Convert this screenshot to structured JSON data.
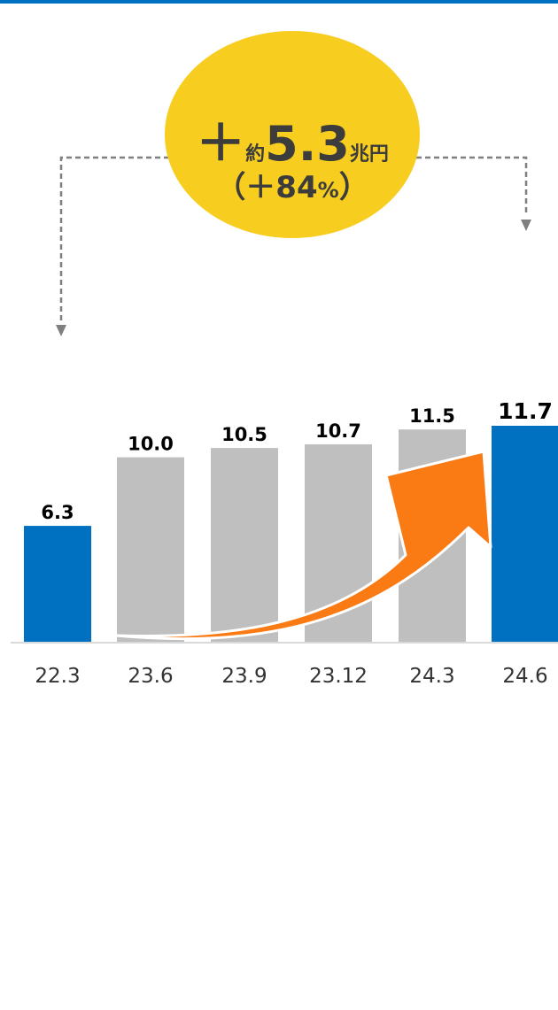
{
  "chart_data": {
    "type": "bar",
    "categories": [
      "22.3",
      "23.6",
      "23.9",
      "23.12",
      "24.3",
      "24.6"
    ],
    "values": [
      6.3,
      10.0,
      10.5,
      10.7,
      11.5,
      11.7
    ],
    "value_labels": [
      "6.3",
      "10.0",
      "10.5",
      "10.7",
      "11.5",
      "11.7"
    ],
    "highlighted": [
      true,
      false,
      false,
      false,
      false,
      true
    ],
    "ylim": [
      0,
      11.7
    ],
    "grid": false,
    "colors": {
      "highlight": "#0070c0",
      "muted": "#bfbfbf",
      "arrow": "#fa7a14",
      "badge": "#f7cd1f",
      "connector": "#7f7f7f"
    },
    "annotation": {
      "plus_sign": "＋",
      "approx": "約",
      "amount": "5.3",
      "unit": "兆円",
      "percent_open": "（＋84",
      "percent_sign": "%",
      "percent_close": "）"
    }
  }
}
